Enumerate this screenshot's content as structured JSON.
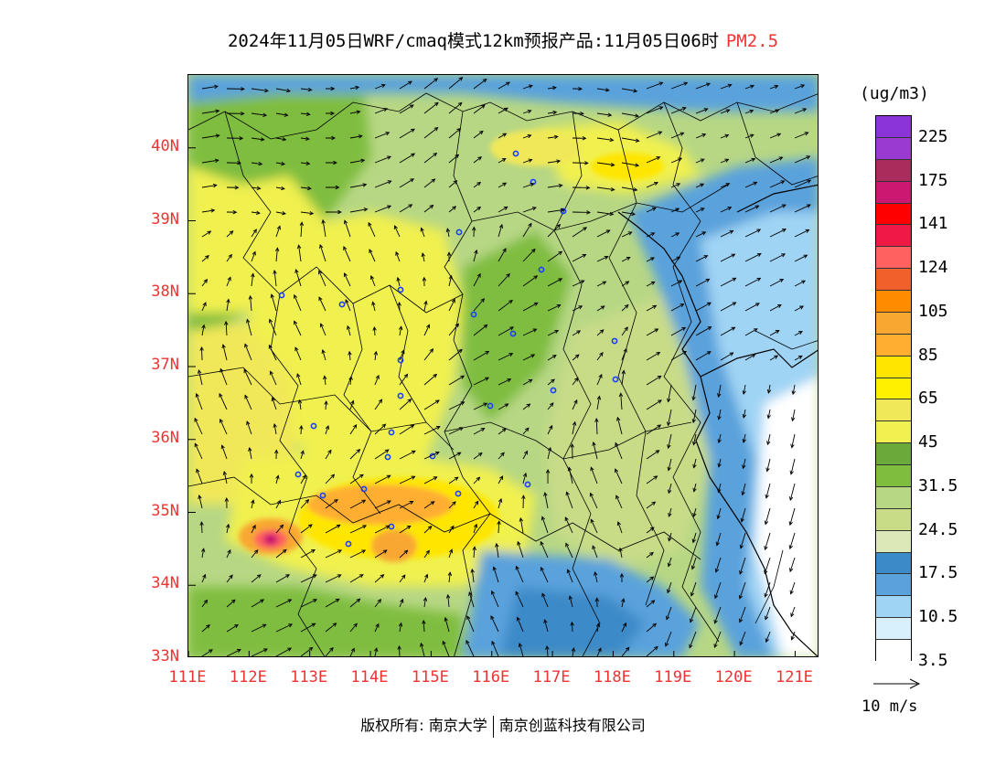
{
  "title": {
    "main": "2024年11月05日WRF/cmaq模式12km预报产品:11月05日06时",
    "variable": "PM2.5"
  },
  "map": {
    "lat_labels": [
      "40N",
      "39N",
      "38N",
      "37N",
      "36N",
      "35N",
      "34N",
      "33N"
    ],
    "lon_labels": [
      "111E",
      "112E",
      "113E",
      "114E",
      "115E",
      "116E",
      "117E",
      "118E",
      "119E",
      "120E",
      "121E"
    ],
    "lat_values": [
      40,
      39,
      38,
      37,
      36,
      35,
      34,
      33
    ],
    "lon_values": [
      111,
      112,
      113,
      114,
      115,
      116,
      117,
      118,
      119,
      120,
      121
    ],
    "extent": {
      "lon_min": 111,
      "lon_max": 121.4,
      "lat_min": 33,
      "lat_max": 41
    }
  },
  "legend": {
    "units": "(ug/m3)",
    "colors": [
      "#8b35d8",
      "#9a3ad0",
      "#a82c5c",
      "#cc1870",
      "#ff0000",
      "#f01845",
      "#ff6060",
      "#f0602a",
      "#ff8c00",
      "#f8a830",
      "#ffae30",
      "#ffe600",
      "#fff000",
      "#f0e858",
      "#f0f050",
      "#6aaa3a",
      "#7fbd3f",
      "#b7d784",
      "#c8dc88",
      "#dde8b8",
      "#3c8ac8",
      "#5aa2dc",
      "#a0d4f4",
      "#d8f0fc",
      "#ffffff"
    ],
    "labels": [
      "225",
      "175",
      "141",
      "124",
      "105",
      "85",
      "65",
      "45",
      "31.5",
      "24.5",
      "17.5",
      "10.5",
      "3.5"
    ]
  },
  "wind": {
    "label": "10 m/s"
  },
  "footer": {
    "left": "版权所有: 南京大学",
    "right": "南京创蓝科技有限公司"
  }
}
